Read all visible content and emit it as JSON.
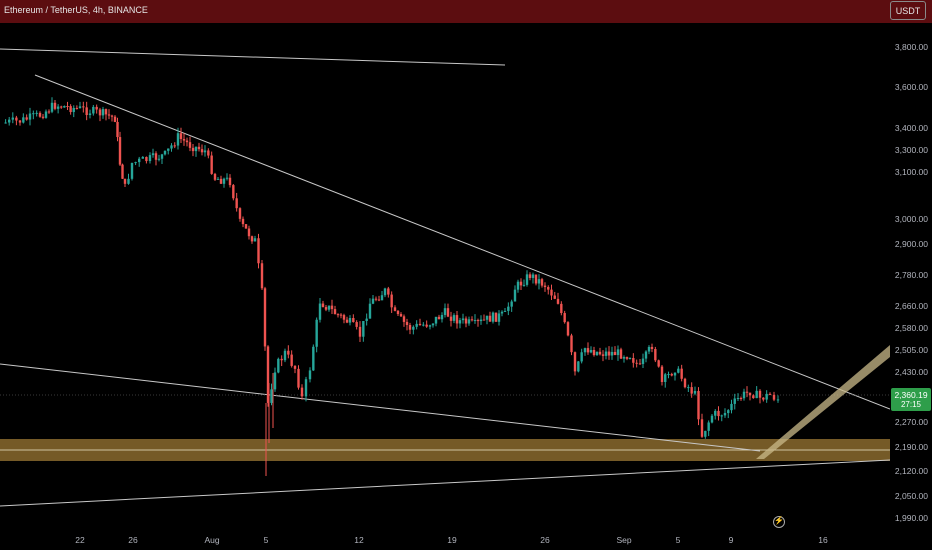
{
  "header": {
    "title": "Ethereum / TetherUS, 4h, BINANCE",
    "currency": "USDT"
  },
  "price_axis": {
    "ticks": [
      "3,800.00",
      "3,600.00",
      "3,400.00",
      "3,300.00",
      "3,100.00",
      "3,000.00",
      "2,900.00",
      "2,780.00",
      "2,660.00",
      "2,580.00",
      "2,505.00",
      "2,430.00",
      "2,270.00",
      "2,190.00",
      "2,120.00",
      "2,050.00",
      "1,990.00"
    ]
  },
  "last_price": {
    "value": "2,360.19",
    "countdown": "27:15"
  },
  "time_axis": {
    "ticks": [
      "22",
      "26",
      "Aug",
      "5",
      "12",
      "19",
      "26",
      "Sep",
      "5",
      "9",
      "16"
    ]
  },
  "colors": {
    "up": "#26a69a",
    "down": "#ef5350",
    "header_bg": "#5c0d10",
    "support_zone": "#8a6a2e",
    "trendline": "#c8c8c8",
    "projection_arrow": "#c9b98a"
  },
  "icons": {
    "bottom_action": "lightning-icon"
  }
}
